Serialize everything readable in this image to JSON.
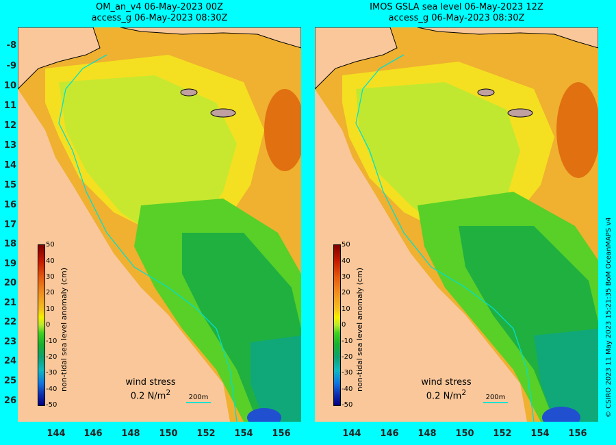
{
  "left_panel": {
    "title_line1": "OM_an_v4  06-May-2023 00Z",
    "title_line2": "access_g 06-May-2023 08:30Z"
  },
  "right_panel": {
    "title_line1": "IMOS GSLA sea level  06-May-2023 12Z",
    "title_line2": "access_g 06-May-2023 08:30Z"
  },
  "y_axis_labels": [
    "-8",
    "-9",
    "10",
    "11",
    "12",
    "13",
    "14",
    "15",
    "16",
    "17",
    "18",
    "19",
    "20",
    "21",
    "22",
    "23",
    "24",
    "25",
    "26"
  ],
  "x_axis_labels": [
    "144",
    "146",
    "148",
    "150",
    "152",
    "154",
    "156"
  ],
  "colorbar": {
    "title": "non-tidal sea level anomaly (cm)",
    "ticks": [
      "50",
      "40",
      "30",
      "20",
      "10",
      "0",
      "-10",
      "-20",
      "-30",
      "-40",
      "-50"
    ]
  },
  "wind_legend": {
    "line1": "wind stress",
    "line2_prefix": "0.2 N/m",
    "line2_sup": "2"
  },
  "scale_bar": {
    "label": "200m"
  },
  "credit": "© CSIRO 2023  11 May 2023 15:21:35 BoM OceanMAPS v4",
  "colors": {
    "land": "#f9c79a",
    "ocean_high": "#f0a020",
    "ocean_mid": "#e8f000",
    "ocean_low": "#30d030",
    "isobath": "#00e0d0",
    "background": "#00ffff"
  }
}
